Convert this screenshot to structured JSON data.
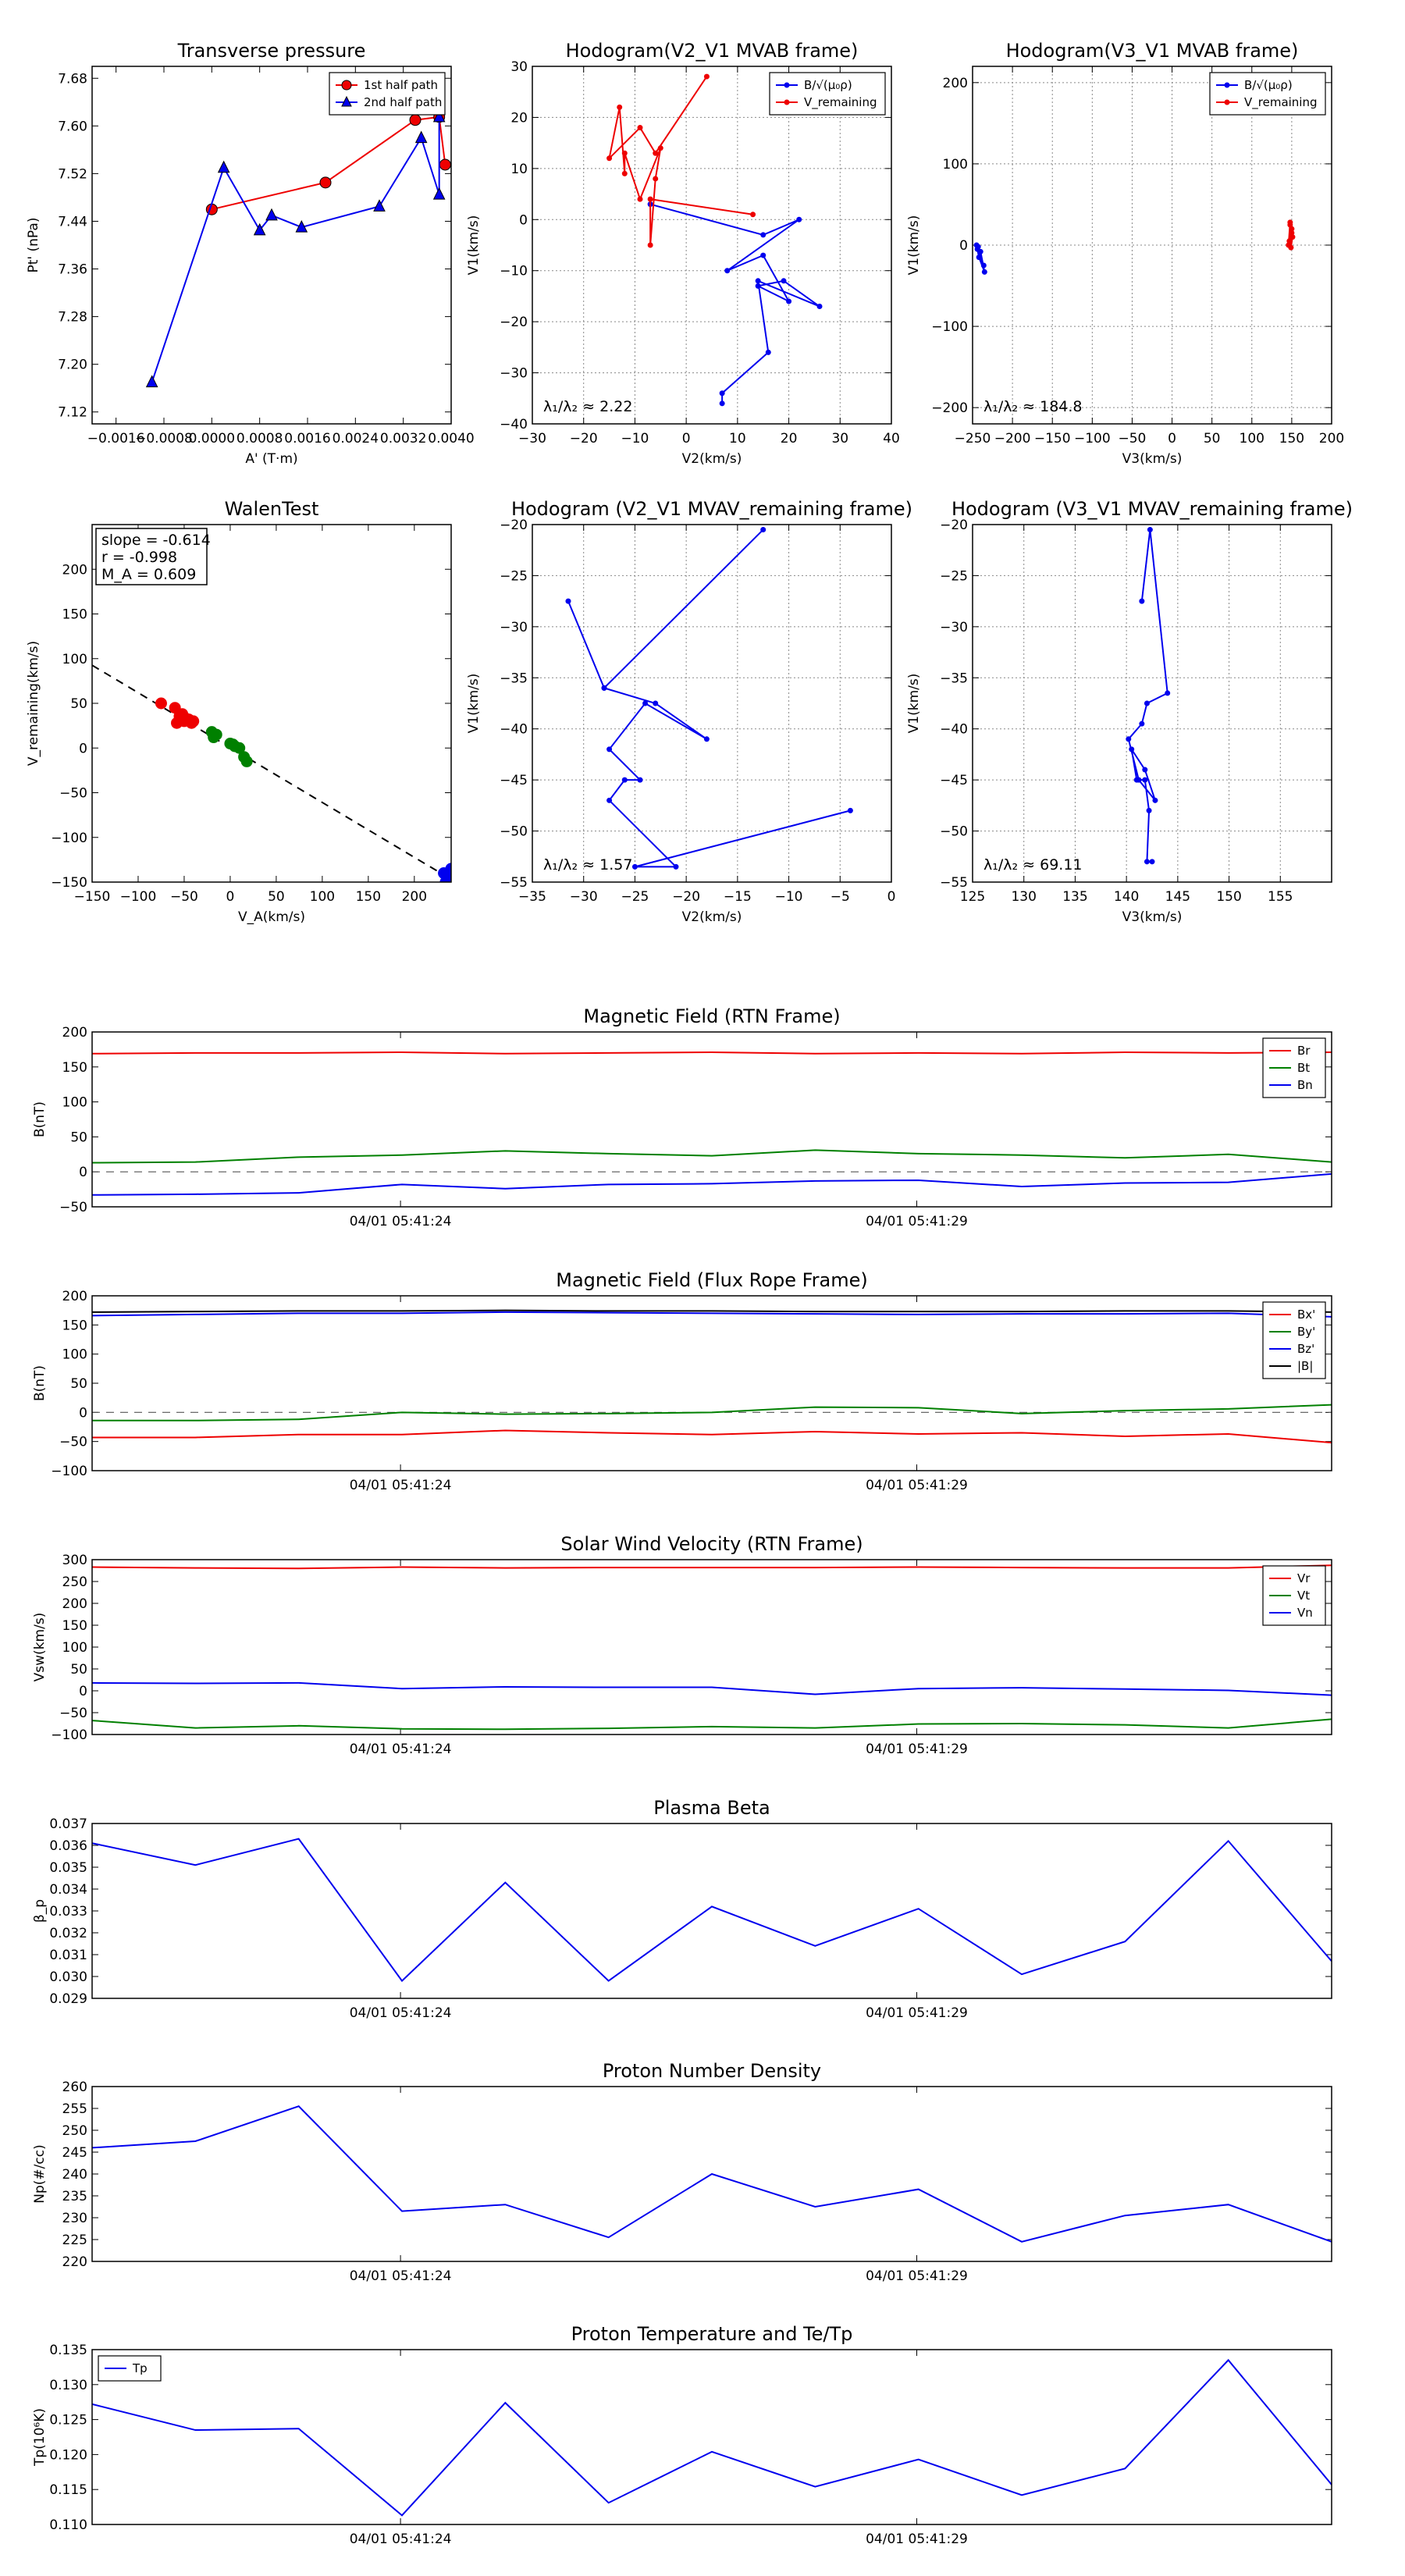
{
  "colors": {
    "red": "#ee0000",
    "blue": "#0000ee",
    "green": "#008000",
    "black": "#000000",
    "grid": "#888888"
  },
  "chart_data": [
    {
      "id": "transverse-pressure",
      "type": "line",
      "title": "Transverse pressure",
      "xlabel": "A' (T·m)",
      "ylabel": "Pt' (nPa)",
      "xlim": [
        -0.002,
        0.004
      ],
      "ylim": [
        7.1,
        7.7
      ],
      "xticks": [
        -0.0016,
        -0.0008,
        0.0,
        0.0008,
        0.0016,
        0.0024,
        0.0032,
        0.004
      ],
      "xtick_labels": [
        "−0.0016",
        "−0.0008",
        "0.0000",
        "0.0008",
        "0.0016",
        "0.0024",
        "0.0032",
        "0.0040"
      ],
      "yticks": [
        7.12,
        7.2,
        7.28,
        7.36,
        7.44,
        7.52,
        7.6,
        7.68
      ],
      "ytick_labels": [
        "7.12",
        "7.20",
        "7.28",
        "7.36",
        "7.44",
        "7.52",
        "7.60",
        "7.68"
      ],
      "grid": false,
      "legend": "top-right",
      "series": [
        {
          "name": "1st half path",
          "color": "#ee0000",
          "marker": "circle",
          "x": [
            0.0,
            0.0019,
            0.0034,
            0.0038,
            0.0039
          ],
          "y": [
            7.46,
            7.505,
            7.61,
            7.615,
            7.535
          ]
        },
        {
          "name": "2nd half path",
          "color": "#0000ee",
          "marker": "triangle",
          "x": [
            -0.001,
            0.0002,
            0.0008,
            0.001,
            0.0015,
            0.0028,
            0.0035,
            0.0038,
            0.0038
          ],
          "y": [
            7.17,
            7.53,
            7.425,
            7.45,
            7.43,
            7.465,
            7.58,
            7.485,
            7.615
          ]
        }
      ]
    },
    {
      "id": "hodogram-v2-v1-mvab",
      "type": "line",
      "title": "Hodogram(V2_V1 MVAB frame)",
      "xlabel": "V2(km/s)",
      "ylabel": "V1(km/s)",
      "xlim": [
        -30,
        40
      ],
      "ylim": [
        -40,
        30
      ],
      "xticks": [
        -30,
        -20,
        -10,
        0,
        10,
        20,
        30,
        40
      ],
      "xtick_labels": [
        "−30",
        "−20",
        "−10",
        "0",
        "10",
        "20",
        "30",
        "40"
      ],
      "yticks": [
        -40,
        -30,
        -20,
        -10,
        0,
        10,
        20,
        30
      ],
      "ytick_labels": [
        "−40",
        "−30",
        "−20",
        "−10",
        "0",
        "10",
        "20",
        "30"
      ],
      "grid": true,
      "legend": "top-right",
      "annotation": "λ₁/λ₂ ≈ 2.22",
      "series": [
        {
          "name": "B/√(μ₀ρ)",
          "color": "#0000ee",
          "marker": "dot",
          "x": [
            7,
            7,
            16,
            14,
            26,
            19,
            14,
            20,
            15,
            8,
            22,
            15,
            -7
          ],
          "y": [
            -36,
            -34,
            -26,
            -12,
            -17,
            -12,
            -13,
            -16,
            -7,
            -10,
            0,
            -3,
            3
          ]
        },
        {
          "name": "V_remaining",
          "color": "#ee0000",
          "marker": "dot",
          "x": [
            13,
            -7,
            -7,
            -6,
            -5,
            -9,
            -12,
            -12,
            -13,
            -15,
            -9,
            -6,
            4
          ],
          "y": [
            1,
            4,
            -5,
            8,
            14,
            4,
            13,
            9,
            22,
            12,
            18,
            13,
            28
          ]
        }
      ]
    },
    {
      "id": "hodogram-v3-v1-mvab",
      "type": "line",
      "title": "Hodogram(V3_V1 MVAB frame)",
      "xlabel": "V3(km/s)",
      "ylabel": "V1(km/s)",
      "xlim": [
        -250,
        200
      ],
      "ylim": [
        -220,
        220
      ],
      "xticks": [
        -250,
        -200,
        -150,
        -100,
        -50,
        0,
        50,
        100,
        150,
        200
      ],
      "xtick_labels": [
        "−250",
        "−200",
        "−150",
        "−100",
        "−50",
        "0",
        "50",
        "100",
        "150",
        "200"
      ],
      "yticks": [
        -200,
        -100,
        0,
        100,
        200
      ],
      "ytick_labels": [
        "−200",
        "−100",
        "0",
        "100",
        "200"
      ],
      "grid": true,
      "legend": "top-right",
      "annotation": "λ₁/λ₂ ≈ 184.8",
      "series": [
        {
          "name": "B/√(μ₀ρ)",
          "color": "#0000ee",
          "marker": "dot",
          "x": [
            -243,
            -240,
            -235,
            -242,
            -245,
            -244,
            -236
          ],
          "y": [
            -2,
            -8,
            -33,
            -15,
            0,
            -5,
            -25
          ]
        },
        {
          "name": "V_remaining",
          "color": "#ee0000",
          "marker": "dot",
          "x": [
            148,
            150,
            147,
            149,
            151,
            150,
            146,
            148
          ],
          "y": [
            25,
            15,
            5,
            -3,
            10,
            20,
            0,
            28
          ]
        }
      ]
    },
    {
      "id": "walen-test",
      "type": "scatter",
      "title": "WalenTest",
      "xlabel": "V_A(km/s)",
      "ylabel": "V_remaining(km/s)",
      "xlim": [
        -150,
        240
      ],
      "ylim": [
        -150,
        250
      ],
      "xticks": [
        -150,
        -100,
        -50,
        0,
        50,
        100,
        150,
        200
      ],
      "xtick_labels": [
        "−150",
        "−100",
        "−50",
        "0",
        "50",
        "100",
        "150",
        "200"
      ],
      "yticks": [
        -150,
        -100,
        -50,
        0,
        50,
        100,
        150,
        200
      ],
      "ytick_labels": [
        "−150",
        "−100",
        "−50",
        "0",
        "50",
        "100",
        "150",
        "200"
      ],
      "grid": false,
      "stats": [
        "slope = -0.614",
        "r = -0.998",
        "M_A = 0.609"
      ],
      "fit": {
        "slope": -0.614,
        "intercept": 0.5
      },
      "series": [
        {
          "name": "red",
          "color": "#ee0000",
          "x": [
            -75,
            -60,
            -55,
            -50,
            -45,
            -58,
            -52,
            -48,
            -42,
            -55,
            -40
          ],
          "y": [
            50,
            45,
            35,
            30,
            32,
            28,
            38,
            33,
            28,
            36,
            30
          ]
        },
        {
          "name": "green",
          "color": "#008000",
          "x": [
            -20,
            -15,
            0,
            5,
            10,
            15,
            18,
            -18,
            3
          ],
          "y": [
            18,
            15,
            5,
            2,
            0,
            -10,
            -15,
            12,
            4
          ]
        },
        {
          "name": "blue",
          "color": "#0000ee",
          "x": [
            232,
            236,
            238,
            240,
            234
          ],
          "y": [
            -140,
            -145,
            -148,
            -135,
            -150
          ]
        }
      ]
    },
    {
      "id": "hodogram-v2-v1-mvav",
      "type": "line",
      "title": "Hodogram (V2_V1 MVAV_remaining frame)",
      "xlabel": "V2(km/s)",
      "ylabel": "V1(km/s)",
      "xlim": [
        -35,
        0
      ],
      "ylim": [
        -55,
        -20
      ],
      "xticks": [
        -35,
        -30,
        -25,
        -20,
        -15,
        -10,
        -5,
        0
      ],
      "xtick_labels": [
        "−35",
        "−30",
        "−25",
        "−20",
        "−15",
        "−10",
        "−5",
        "0"
      ],
      "yticks": [
        -55,
        -50,
        -45,
        -40,
        -35,
        -30,
        -25,
        -20
      ],
      "ytick_labels": [
        "−55",
        "−50",
        "−45",
        "−40",
        "−35",
        "−30",
        "−25",
        "−20"
      ],
      "grid": true,
      "annotation": "λ₁/λ₂ ≈ 1.57",
      "series": [
        {
          "name": "blue",
          "color": "#0000ee",
          "marker": "dot",
          "x": [
            -4,
            -25,
            -21,
            -27.5,
            -26,
            -24.5,
            -27.5,
            -24,
            -18,
            -23,
            -28,
            -31.5,
            -28,
            -12.5
          ],
          "y": [
            -48,
            -53.5,
            -53.5,
            -47,
            -45,
            -45,
            -42,
            -37.5,
            -41,
            -37.5,
            -36,
            -27.5,
            -36,
            -20.5
          ]
        }
      ]
    },
    {
      "id": "hodogram-v3-v1-mvav",
      "type": "line",
      "title": "Hodogram (V3_V1 MVAV_remaining frame)",
      "xlabel": "V3(km/s)",
      "ylabel": "V1(km/s)",
      "xlim": [
        125,
        160
      ],
      "ylim": [
        -55,
        -20
      ],
      "xticks": [
        125,
        130,
        135,
        140,
        145,
        150,
        155
      ],
      "xtick_labels": [
        "125",
        "130",
        "135",
        "140",
        "145",
        "150",
        "155"
      ],
      "yticks": [
        -55,
        -50,
        -45,
        -40,
        -35,
        -30,
        -25,
        -20
      ],
      "ytick_labels": [
        "−55",
        "−50",
        "−45",
        "−40",
        "−35",
        "−30",
        "−25",
        "−20"
      ],
      "grid": true,
      "annotation": "λ₁/λ₂ ≈ 69.11",
      "series": [
        {
          "name": "blue",
          "color": "#0000ee",
          "marker": "dot",
          "x": [
            142.5,
            142,
            142.2,
            141.8,
            141,
            140.5,
            141.8,
            142.8,
            141.2,
            140.2,
            141.5,
            142,
            144,
            142.3,
            141.5
          ],
          "y": [
            -53,
            -53,
            -48,
            -45,
            -45,
            -42,
            -44,
            -47,
            -45,
            -41,
            -39.5,
            -37.5,
            -36.5,
            -20.5,
            -27.5
          ]
        }
      ]
    },
    {
      "id": "magnetic-field-rtn",
      "type": "line",
      "title": "Magnetic Field (RTN Frame)",
      "ylabel": "B(nT)",
      "ylim": [
        -50,
        200
      ],
      "yticks": [
        -50,
        0,
        50,
        100,
        150,
        200
      ],
      "ytick_labels": [
        "−50",
        "0",
        "50",
        "100",
        "150",
        "200"
      ],
      "time_labels": [
        "04/01 05:41:24",
        "04/01 05:41:29"
      ],
      "zero_line": true,
      "legend": "top-right",
      "series": [
        {
          "name": "Br",
          "color": "#ee0000",
          "values": [
            169,
            170,
            170,
            171,
            169,
            170,
            171,
            169,
            170,
            169,
            171,
            170,
            171
          ]
        },
        {
          "name": "Bt",
          "color": "#008000",
          "values": [
            13,
            14,
            21,
            24,
            30,
            26,
            23,
            31,
            26,
            24,
            20,
            25,
            14
          ]
        },
        {
          "name": "Bn",
          "color": "#0000ee",
          "values": [
            -33,
            -32,
            -30,
            -18,
            -24,
            -18,
            -17,
            -13,
            -12,
            -21,
            -16,
            -15,
            -3
          ]
        }
      ]
    },
    {
      "id": "magnetic-field-flux-rope",
      "type": "line",
      "title": "Magnetic Field (Flux Rope Frame)",
      "ylabel": "B(nT)",
      "ylim": [
        -100,
        200
      ],
      "yticks": [
        -100,
        -50,
        0,
        50,
        100,
        150,
        200
      ],
      "ytick_labels": [
        "−100",
        "−50",
        "0",
        "50",
        "100",
        "150",
        "200"
      ],
      "time_labels": [
        "04/01 05:41:24",
        "04/01 05:41:29"
      ],
      "zero_line": true,
      "legend": "top-right",
      "series": [
        {
          "name": "Bx'",
          "color": "#ee0000",
          "values": [
            -43,
            -43,
            -38,
            -38,
            -31,
            -35,
            -38,
            -33,
            -37,
            -35,
            -41,
            -37,
            -52
          ]
        },
        {
          "name": "By'",
          "color": "#008000",
          "values": [
            -14,
            -14,
            -12,
            0,
            -3,
            -2,
            0,
            9,
            8,
            -2,
            3,
            6,
            13
          ]
        },
        {
          "name": "Bz'",
          "color": "#0000ee",
          "values": [
            166,
            168,
            170,
            170,
            172,
            171,
            170,
            169,
            168,
            169,
            169,
            170,
            164
          ]
        },
        {
          "name": "|B|",
          "color": "#000000",
          "values": [
            172,
            173,
            174,
            174,
            175,
            174,
            174,
            173,
            173,
            173,
            174,
            174,
            172
          ]
        }
      ]
    },
    {
      "id": "solar-wind-velocity",
      "type": "line",
      "title": "Solar Wind Velocity (RTN Frame)",
      "ylabel": "Vsw(km/s)",
      "ylim": [
        -100,
        300
      ],
      "yticks": [
        -100,
        -50,
        0,
        50,
        100,
        150,
        200,
        250,
        300
      ],
      "ytick_labels": [
        "−100",
        "−50",
        "0",
        "50",
        "100",
        "150",
        "200",
        "250",
        "300"
      ],
      "time_labels": [
        "04/01 05:41:24",
        "04/01 05:41:29"
      ],
      "legend": "top-right",
      "series": [
        {
          "name": "Vr",
          "color": "#ee0000",
          "values": [
            283,
            281,
            280,
            283,
            281,
            282,
            282,
            282,
            283,
            282,
            281,
            281,
            287
          ]
        },
        {
          "name": "Vt",
          "color": "#008000",
          "values": [
            -68,
            -85,
            -80,
            -87,
            -88,
            -86,
            -82,
            -85,
            -76,
            -75,
            -78,
            -85,
            -65
          ]
        },
        {
          "name": "Vn",
          "color": "#0000ee",
          "values": [
            18,
            17,
            18,
            5,
            9,
            8,
            8,
            -8,
            5,
            7,
            4,
            1,
            -10
          ]
        }
      ]
    },
    {
      "id": "plasma-beta",
      "type": "line",
      "title": "Plasma Beta",
      "ylabel": "β_p",
      "ylim": [
        0.029,
        0.037
      ],
      "yticks": [
        0.029,
        0.03,
        0.031,
        0.032,
        0.033,
        0.034,
        0.035,
        0.036,
        0.037
      ],
      "ytick_labels": [
        "0.029",
        "0.030",
        "0.031",
        "0.032",
        "0.033",
        "0.034",
        "0.035",
        "0.036",
        "0.037"
      ],
      "time_labels": [
        "04/01 05:41:24",
        "04/01 05:41:29"
      ],
      "series": [
        {
          "name": "beta",
          "color": "#0000ee",
          "values": [
            0.0361,
            0.0351,
            0.0363,
            0.0298,
            0.0343,
            0.0298,
            0.0332,
            0.0314,
            0.0331,
            0.0301,
            0.0316,
            0.0362,
            0.0307
          ]
        }
      ]
    },
    {
      "id": "proton-number-density",
      "type": "line",
      "title": "Proton Number Density",
      "ylabel": "Np(#/cc)",
      "ylim": [
        220,
        260
      ],
      "yticks": [
        220,
        225,
        230,
        235,
        240,
        245,
        250,
        255,
        260
      ],
      "ytick_labels": [
        "220",
        "225",
        "230",
        "235",
        "240",
        "245",
        "250",
        "255",
        "260"
      ],
      "time_labels": [
        "04/01 05:41:24",
        "04/01 05:41:29"
      ],
      "series": [
        {
          "name": "Np",
          "color": "#0000ee",
          "values": [
            246,
            247.5,
            255.5,
            231.5,
            233,
            225.5,
            240,
            232.5,
            236.5,
            224.5,
            230.5,
            233,
            224.5
          ]
        }
      ]
    },
    {
      "id": "proton-temperature",
      "type": "line",
      "title": "Proton Temperature and Te/Tp",
      "ylabel": "Tp(10⁶K)",
      "ylim": [
        0.11,
        0.135
      ],
      "yticks": [
        0.11,
        0.115,
        0.12,
        0.125,
        0.13,
        0.135
      ],
      "ytick_labels": [
        "0.110",
        "0.115",
        "0.120",
        "0.125",
        "0.130",
        "0.135"
      ],
      "time_labels": [
        "04/01 05:41:24",
        "04/01 05:41:29"
      ],
      "legend": "top-left",
      "series": [
        {
          "name": "Tp",
          "color": "#0000ee",
          "values": [
            0.1272,
            0.1235,
            0.1237,
            0.1113,
            0.1274,
            0.1131,
            0.1204,
            0.1154,
            0.1193,
            0.1142,
            0.118,
            0.1335,
            0.1157
          ]
        }
      ]
    }
  ]
}
